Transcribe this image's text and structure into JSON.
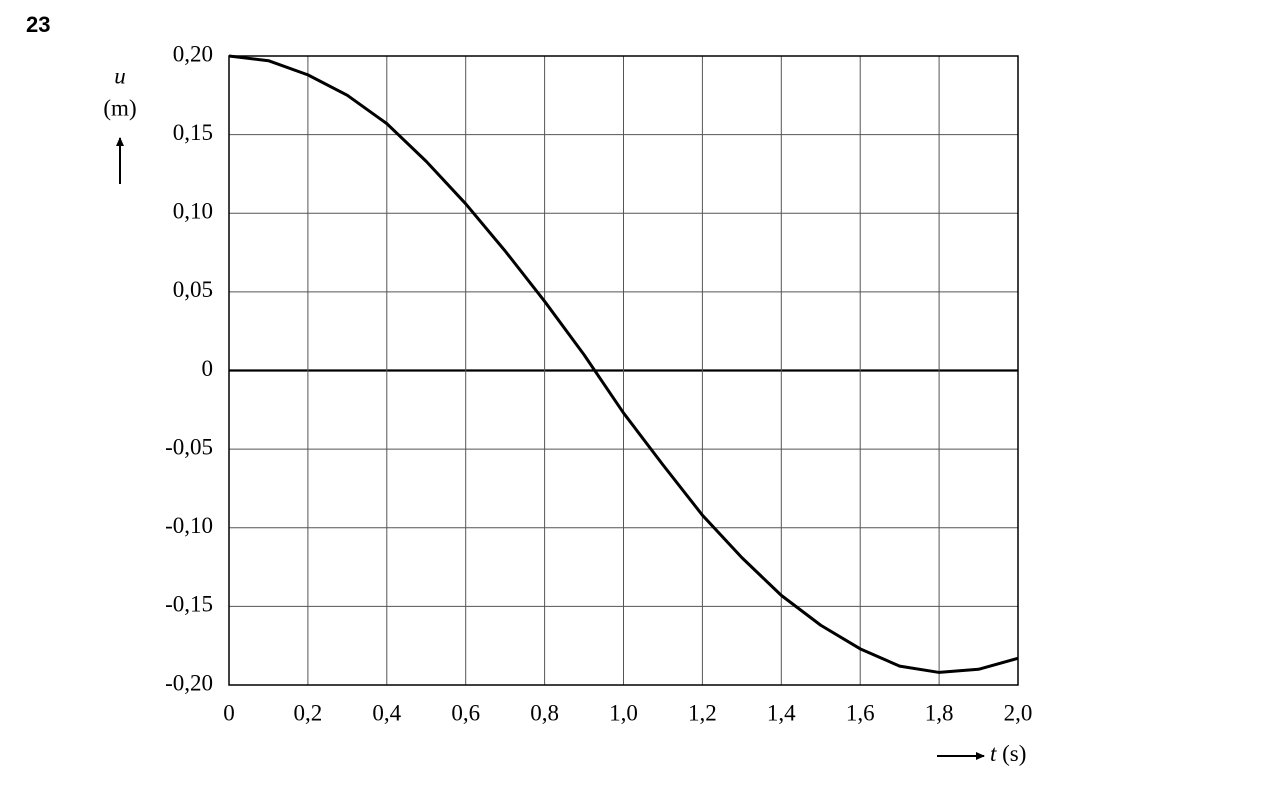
{
  "question_number": "23",
  "chart_data": {
    "type": "line",
    "ylabel": {
      "symbol": "u",
      "unit": "(m)"
    },
    "xlabel": {
      "symbol": "t",
      "unit": "(s)"
    },
    "x": [
      0,
      0.1,
      0.2,
      0.3,
      0.4,
      0.5,
      0.6,
      0.7,
      0.8,
      0.9,
      1.0,
      1.1,
      1.2,
      1.3,
      1.4,
      1.5,
      1.6,
      1.7,
      1.8,
      1.9,
      2.0
    ],
    "values": [
      0.2,
      0.197,
      0.188,
      0.175,
      0.157,
      0.133,
      0.106,
      0.076,
      0.044,
      0.01,
      -0.027,
      -0.06,
      -0.092,
      -0.119,
      -0.143,
      -0.162,
      -0.177,
      -0.188,
      -0.192,
      -0.19,
      -0.183
    ],
    "color": "#000000",
    "xlim": [
      0,
      2.0
    ],
    "ylim": [
      -0.2,
      0.2
    ],
    "xticks": [
      0,
      {
        "value": 0.2,
        "label": "0,2"
      },
      {
        "value": 0.4,
        "label": "0,4"
      },
      {
        "value": 0.6,
        "label": "0,6"
      },
      {
        "value": 0.8,
        "label": "0,8"
      },
      {
        "value": 1.0,
        "label": "1,0"
      },
      {
        "value": 1.2,
        "label": "1,2"
      },
      {
        "value": 1.4,
        "label": "1,4"
      },
      {
        "value": 1.6,
        "label": "1,6"
      },
      {
        "value": 1.8,
        "label": "1,8"
      },
      {
        "value": 2.0,
        "label": "2,0"
      }
    ],
    "yticks": [
      {
        "value": -0.2,
        "label": "-0,20"
      },
      {
        "value": -0.15,
        "label": "-0,15"
      },
      {
        "value": -0.1,
        "label": "-0,10"
      },
      {
        "value": -0.05,
        "label": "-0,05"
      },
      0,
      {
        "value": 0.05,
        "label": "0,05"
      },
      {
        "value": 0.1,
        "label": "0,10"
      },
      {
        "value": 0.15,
        "label": "0,15"
      },
      {
        "value": 0.2,
        "label": "0,20"
      }
    ],
    "grid": true
  }
}
